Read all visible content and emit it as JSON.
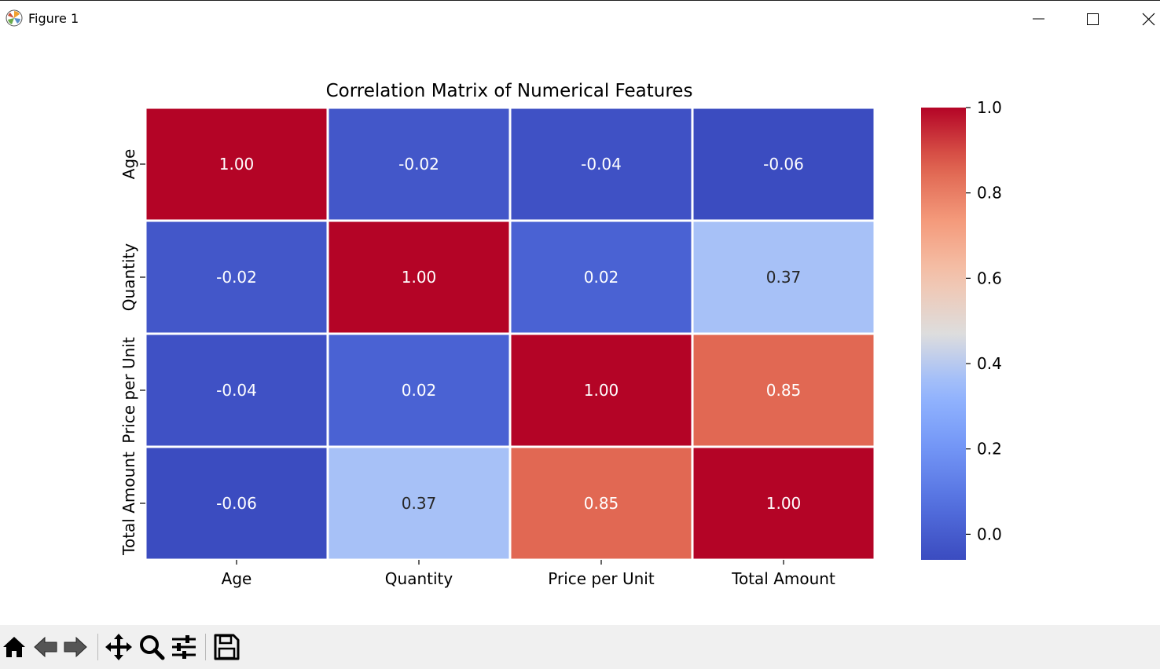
{
  "window": {
    "title": "Figure 1"
  },
  "toolbar": {
    "tools": [
      {
        "name": "home-icon"
      },
      {
        "name": "back-arrow-icon"
      },
      {
        "name": "forward-arrow-icon"
      },
      {
        "name": "pan-move-icon"
      },
      {
        "name": "zoom-magnifier-icon"
      },
      {
        "name": "configure-subplots-icon"
      },
      {
        "name": "save-floppy-icon"
      }
    ]
  },
  "chart_data": {
    "type": "heatmap",
    "title": "Correlation Matrix of Numerical Features",
    "xlabel": "",
    "ylabel": "",
    "x_categories": [
      "Age",
      "Quantity",
      "Price per Unit",
      "Total Amount"
    ],
    "y_categories": [
      "Age",
      "Quantity",
      "Price per Unit",
      "Total Amount"
    ],
    "values": [
      [
        1.0,
        -0.02,
        -0.04,
        -0.06
      ],
      [
        -0.02,
        1.0,
        0.02,
        0.37
      ],
      [
        -0.04,
        0.02,
        1.0,
        0.85
      ],
      [
        -0.06,
        0.37,
        0.85,
        1.0
      ]
    ],
    "cell_labels": [
      [
        "1.00",
        "-0.02",
        "-0.04",
        "-0.06"
      ],
      [
        "-0.02",
        "1.00",
        "0.02",
        "0.37"
      ],
      [
        "-0.04",
        "0.02",
        "1.00",
        "0.85"
      ],
      [
        "-0.06",
        "0.37",
        "0.85",
        "1.00"
      ]
    ],
    "colormap": "coolwarm",
    "vmin": -0.06,
    "vmax": 1.0,
    "colorbar": {
      "ticks": [
        0.0,
        0.2,
        0.4,
        0.6,
        0.8,
        1.0
      ],
      "tick_labels": [
        "0.0",
        "0.2",
        "0.4",
        "0.6",
        "0.8",
        "1.0"
      ]
    },
    "colors": {
      "low": "#3b4cc0",
      "mid": "#dddddd",
      "high": "#b40426",
      "cell_border": "#ffffff"
    }
  }
}
